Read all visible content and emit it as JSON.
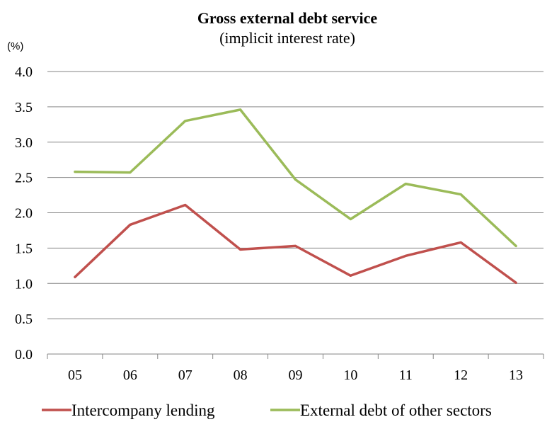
{
  "chart_data": {
    "type": "line",
    "title": "Gross external debt service",
    "subtitle": "(implicit interest rate)",
    "unit_label": "(%)",
    "xlabel": "",
    "ylabel": "",
    "categories": [
      "05",
      "06",
      "07",
      "08",
      "09",
      "10",
      "11",
      "12",
      "13"
    ],
    "ylim": [
      0,
      4
    ],
    "yticks": [
      "0.0",
      "0.5",
      "1.0",
      "1.5",
      "2.0",
      "2.5",
      "3.0",
      "3.5",
      "4.0"
    ],
    "grid": true,
    "legend_position": "bottom",
    "series": [
      {
        "name": "Intercompany lending",
        "color": "#c0504d",
        "values": [
          1.09,
          1.83,
          2.11,
          1.48,
          1.53,
          1.11,
          1.39,
          1.58,
          1.01
        ]
      },
      {
        "name": "External debt of other sectors",
        "color": "#9bbb59",
        "values": [
          2.58,
          2.57,
          3.3,
          3.46,
          2.47,
          1.91,
          2.41,
          2.26,
          1.53
        ]
      }
    ]
  },
  "colors": {
    "grid": "#868686",
    "axis": "#868686",
    "text": "#000000"
  }
}
